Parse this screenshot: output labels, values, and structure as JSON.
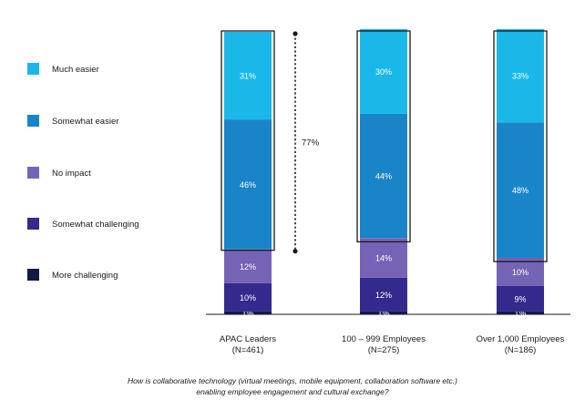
{
  "chart_data": {
    "type": "stacked-bar",
    "categories": [
      {
        "line1": "APAC Leaders",
        "line2": "(N=461)"
      },
      {
        "line1": "100 – 999 Employees",
        "line2": "(N=275)"
      },
      {
        "line1": "Over 1,000 Employees",
        "line2": "(N=186)"
      }
    ],
    "series": [
      {
        "name": "Much easier",
        "color": "#1ab8e8",
        "values": [
          31,
          30,
          33
        ],
        "labels": [
          "31%",
          "30%",
          "33%"
        ]
      },
      {
        "name": "Somewhat easier",
        "color": "#1a84c9",
        "values": [
          46,
          44,
          48
        ],
        "labels": [
          "46%",
          "44%",
          "48%"
        ]
      },
      {
        "name": "No impact",
        "color": "#7563b5",
        "values": [
          12,
          14,
          10
        ],
        "labels": [
          "12%",
          "14%",
          "10%"
        ]
      },
      {
        "name": "Somewhat challenging",
        "color": "#34298c",
        "values": [
          10,
          12,
          9
        ],
        "labels": [
          "10%",
          "12%",
          "9%"
        ]
      },
      {
        "name": "More challenging",
        "color": "#141944",
        "values": [
          1,
          1,
          1
        ],
        "labels": [
          "1%",
          "1%",
          "1%"
        ]
      }
    ],
    "highlight": {
      "label": "77%",
      "series": [
        "Much easier",
        "Somewhat easier"
      ],
      "category_index": 0
    },
    "legend_position": "left",
    "caption": {
      "line1": "How is collaborative technology (virtual meetings, mobile equipment, collaboration software etc.)",
      "line2": "enabling employee engagement and cultural exchange?"
    }
  }
}
